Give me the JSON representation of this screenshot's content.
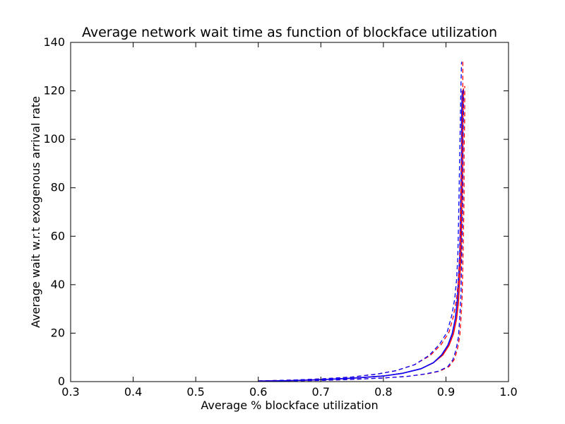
{
  "chart_data": {
    "type": "line",
    "title": "Average network wait time as function of blockface utilization",
    "xlabel": "Average % blockface utilization",
    "ylabel": "Average wait w.r.t exogenous arrival rate",
    "xlim": [
      0.3,
      1.0
    ],
    "ylim": [
      0,
      140
    ],
    "xticks": [
      "0.3",
      "0.4",
      "0.5",
      "0.6",
      "0.7",
      "0.8",
      "0.9",
      "1.0"
    ],
    "yticks": [
      "0",
      "20",
      "40",
      "60",
      "80",
      "100",
      "120",
      "140"
    ],
    "grid": false,
    "legend": "none",
    "colors": {
      "red": "#ff0000",
      "blue": "#0000ff",
      "axes": "#000000"
    },
    "series": [
      {
        "color": "#ff0000",
        "style": "solid",
        "x": [
          0.6,
          0.65,
          0.7,
          0.75,
          0.8,
          0.83,
          0.86,
          0.88,
          0.895,
          0.905,
          0.912,
          0.917,
          0.92,
          0.922,
          0.924,
          0.925,
          0.926,
          0.927,
          0.927,
          0.928
        ],
        "y": [
          0.2,
          0.4,
          0.8,
          1.4,
          2.3,
          3.4,
          5.3,
          7.8,
          11.0,
          15.0,
          19.8,
          26.0,
          33.0,
          42.0,
          52.0,
          65.0,
          80.0,
          95.0,
          108.0,
          121.0
        ]
      },
      {
        "color": "#0000ff",
        "style": "solid",
        "x": [
          0.6,
          0.65,
          0.7,
          0.75,
          0.8,
          0.83,
          0.86,
          0.88,
          0.893,
          0.903,
          0.91,
          0.915,
          0.918,
          0.92,
          0.922,
          0.923,
          0.924,
          0.925,
          0.925,
          0.926
        ],
        "y": [
          0.2,
          0.4,
          0.8,
          1.4,
          2.3,
          3.4,
          5.3,
          7.8,
          11.0,
          15.0,
          19.8,
          26.0,
          33.0,
          42.0,
          52.0,
          65.0,
          80.0,
          95.0,
          108.0,
          120.0
        ]
      },
      {
        "color": "#ff0000",
        "style": "dashed",
        "x": [
          0.6,
          0.65,
          0.7,
          0.75,
          0.79,
          0.82,
          0.85,
          0.875,
          0.893,
          0.905,
          0.912,
          0.917,
          0.92,
          0.922,
          0.923,
          0.924,
          0.925,
          0.926,
          0.927,
          0.927
        ],
        "y": [
          0.3,
          0.6,
          1.1,
          1.9,
          3.1,
          4.5,
          7.0,
          10.8,
          15.5,
          20.5,
          27.0,
          34.0,
          42.0,
          52.0,
          64.0,
          78.0,
          93.0,
          108.0,
          122.0,
          132.0
        ]
      },
      {
        "color": "#0000ff",
        "style": "dashed",
        "x": [
          0.6,
          0.65,
          0.7,
          0.75,
          0.79,
          0.82,
          0.85,
          0.873,
          0.89,
          0.902,
          0.909,
          0.914,
          0.917,
          0.919,
          0.92,
          0.921,
          0.922,
          0.923,
          0.924,
          0.925
        ],
        "y": [
          0.3,
          0.6,
          1.1,
          1.9,
          3.1,
          4.5,
          7.0,
          10.8,
          15.5,
          20.5,
          27.0,
          34.0,
          42.0,
          52.0,
          64.0,
          78.0,
          93.0,
          108.0,
          122.0,
          132.0
        ]
      },
      {
        "color": "#ff0000",
        "style": "dashed",
        "x": [
          0.6,
          0.65,
          0.7,
          0.75,
          0.8,
          0.84,
          0.87,
          0.89,
          0.905,
          0.913,
          0.918,
          0.922,
          0.924,
          0.926,
          0.927,
          0.928,
          0.929,
          0.929,
          0.93,
          0.93
        ],
        "y": [
          0.1,
          0.3,
          0.5,
          0.9,
          1.5,
          2.2,
          3.2,
          4.3,
          6.2,
          9.0,
          13.0,
          18.5,
          26.0,
          36.0,
          48.0,
          62.0,
          78.0,
          95.0,
          110.0,
          122.0
        ]
      },
      {
        "color": "#0000ff",
        "style": "dashed",
        "x": [
          0.6,
          0.65,
          0.7,
          0.75,
          0.8,
          0.84,
          0.868,
          0.888,
          0.903,
          0.911,
          0.916,
          0.92,
          0.922,
          0.924,
          0.925,
          0.926,
          0.927,
          0.927,
          0.928,
          0.928
        ],
        "y": [
          0.1,
          0.3,
          0.5,
          0.9,
          1.5,
          2.2,
          3.2,
          4.3,
          6.2,
          9.0,
          13.0,
          18.5,
          26.0,
          36.0,
          48.0,
          62.0,
          78.0,
          95.0,
          110.0,
          121.0
        ]
      }
    ]
  }
}
